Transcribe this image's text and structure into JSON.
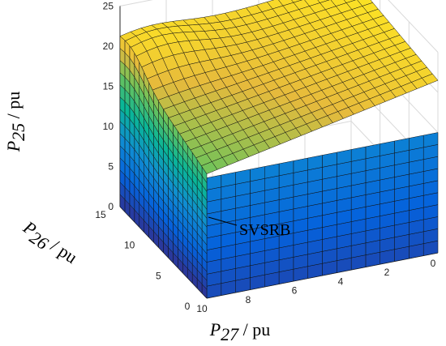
{
  "chart_data": {
    "type": "surface",
    "title": "",
    "z_axis": {
      "label": "P",
      "subscript": "25",
      "unit": "/ pu",
      "range": [
        0,
        25
      ],
      "ticks": [
        "0",
        "5",
        "10",
        "15",
        "20",
        "25"
      ]
    },
    "y_axis": {
      "label": "P",
      "subscript": "26",
      "unit": "/ pu",
      "range": [
        0,
        15
      ],
      "ticks": [
        "0",
        "5",
        "10",
        "15"
      ]
    },
    "x_axis": {
      "label": "P",
      "subscript": "27",
      "unit": "/ pu",
      "range": [
        0,
        10
      ],
      "ticks": [
        "0",
        "2",
        "4",
        "6",
        "8",
        "10"
      ]
    },
    "grid": true,
    "colormap": "parula",
    "surface_name": "SVSRB",
    "annotation": "SVSRB",
    "surface_samples": {
      "description_axes": [
        "P26",
        "P27",
        "P25"
      ],
      "points": [
        [
          0,
          10,
          0
        ],
        [
          15,
          10,
          0
        ],
        [
          0,
          10,
          17
        ],
        [
          2,
          10,
          18.5
        ],
        [
          5,
          10,
          19.5
        ],
        [
          10,
          10,
          20.5
        ],
        [
          15,
          10,
          21
        ],
        [
          15,
          5,
          22
        ],
        [
          15,
          0,
          23
        ],
        [
          10,
          0,
          22
        ],
        [
          5,
          0,
          21
        ],
        [
          2,
          0,
          20
        ],
        [
          0,
          0,
          19
        ],
        [
          0,
          0,
          0
        ],
        [
          0,
          5,
          0
        ]
      ]
    }
  },
  "labels": {
    "z": {
      "main": "P",
      "sub": "25",
      "unit": " / pu"
    },
    "y": {
      "main": "P",
      "sub": "26",
      "unit": " / pu"
    },
    "x": {
      "main": "P",
      "sub": "27",
      "unit": " / pu"
    }
  }
}
